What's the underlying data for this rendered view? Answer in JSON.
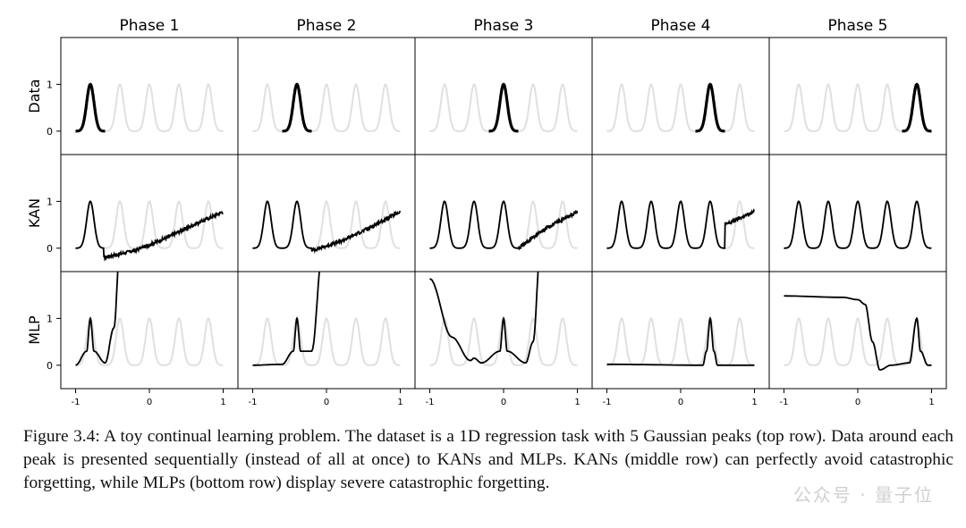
{
  "chart_data": {
    "type": "line",
    "columns": [
      "Phase 1",
      "Phase 2",
      "Phase 3",
      "Phase 4",
      "Phase 5"
    ],
    "rows": [
      "Data",
      "KAN",
      "MLP"
    ],
    "xlim": [
      -1.2,
      1.2
    ],
    "ylim": [
      -0.5,
      2.0
    ],
    "x_ticks": [
      -1,
      0,
      1
    ],
    "x_tick_labels": [
      "-1",
      "0",
      "1"
    ],
    "y_ticks": [
      0,
      1
    ],
    "y_tick_labels": [
      "0",
      "1"
    ],
    "peak_centers": [
      -0.8,
      -0.4,
      0.0,
      0.4,
      0.8
    ],
    "peak_width_sigma": 0.05,
    "peak_height": 1,
    "ground_truth_color": "#e0e0e0",
    "prediction_color": "#000000",
    "data_rows": {
      "Data": "highlighted Gaussian peak i in phase i (thick black), all five peaks in light gray",
      "KAN": [
        {
          "phase": 1,
          "peaks_fit": [
            -0.8
          ],
          "tail": [
            [
              -0.62,
              -0.2
            ],
            [
              -0.2,
              -0.05
            ],
            [
              0.2,
              0.2
            ],
            [
              0.6,
              0.5
            ],
            [
              1.0,
              0.78
            ]
          ]
        },
        {
          "phase": 2,
          "peaks_fit": [
            -0.8,
            -0.4
          ],
          "tail": [
            [
              -0.2,
              -0.05
            ],
            [
              0.2,
              0.15
            ],
            [
              0.6,
              0.45
            ],
            [
              1.0,
              0.78
            ]
          ]
        },
        {
          "phase": 3,
          "peaks_fit": [
            -0.8,
            -0.4,
            0.0
          ],
          "tail": [
            [
              0.2,
              0.0
            ],
            [
              0.6,
              0.45
            ],
            [
              1.0,
              0.78
            ]
          ]
        },
        {
          "phase": 4,
          "peaks_fit": [
            -0.8,
            -0.4,
            0.0,
            0.4
          ],
          "tail": [
            [
              0.6,
              0.5
            ],
            [
              1.0,
              0.78
            ]
          ]
        },
        {
          "phase": 5,
          "peaks_fit": [
            -0.8,
            -0.4,
            0.0,
            0.4,
            0.8
          ],
          "tail": []
        }
      ],
      "MLP": [
        {
          "phase": 1,
          "points": [
            [
              -1.0,
              0.0
            ],
            [
              -0.85,
              0.3
            ],
            [
              -0.8,
              1.0
            ],
            [
              -0.75,
              0.3
            ],
            [
              -0.6,
              0.05
            ],
            [
              -0.48,
              0.8
            ],
            [
              -0.4,
              2.5
            ]
          ]
        },
        {
          "phase": 2,
          "points": [
            [
              -1.0,
              0.0
            ],
            [
              -0.6,
              0.02
            ],
            [
              -0.45,
              0.3
            ],
            [
              -0.4,
              1.0
            ],
            [
              -0.35,
              0.3
            ],
            [
              -0.2,
              0.3
            ],
            [
              -0.05,
              2.5
            ]
          ]
        },
        {
          "phase": 3,
          "points": [
            [
              -1.0,
              1.85
            ],
            [
              -0.7,
              0.6
            ],
            [
              -0.45,
              0.1
            ],
            [
              -0.4,
              0.15
            ],
            [
              -0.3,
              0.05
            ],
            [
              -0.05,
              0.3
            ],
            [
              0.0,
              1.0
            ],
            [
              0.05,
              0.3
            ],
            [
              0.3,
              0.05
            ],
            [
              0.4,
              0.5
            ],
            [
              0.5,
              2.5
            ]
          ]
        },
        {
          "phase": 4,
          "points": [
            [
              -1.0,
              0.02
            ],
            [
              0.3,
              0.0
            ],
            [
              0.35,
              0.3
            ],
            [
              0.4,
              1.0
            ],
            [
              0.45,
              0.3
            ],
            [
              0.5,
              0.0
            ],
            [
              1.0,
              0.0
            ]
          ]
        },
        {
          "phase": 5,
          "points": [
            [
              -1.0,
              1.48
            ],
            [
              -0.2,
              1.45
            ],
            [
              0.0,
              1.4
            ],
            [
              0.1,
              1.3
            ],
            [
              0.2,
              0.5
            ],
            [
              0.3,
              -0.1
            ],
            [
              0.45,
              0.0
            ],
            [
              0.7,
              0.05
            ],
            [
              0.8,
              1.0
            ],
            [
              0.85,
              0.3
            ],
            [
              0.95,
              0.0
            ],
            [
              1.0,
              0.0
            ]
          ]
        }
      ]
    }
  },
  "caption": "Figure 3.4: A toy continual learning problem. The dataset is a 1D regression task with 5 Gaussian peaks (top row). Data around each peak is presented sequentially (instead of all at once) to KANs and MLPs. KANs (middle row) can perfectly avoid catastrophic forgetting, while MLPs (bottom row) display severe catastrophic forgetting.",
  "watermark": "公众号 · 量子位"
}
